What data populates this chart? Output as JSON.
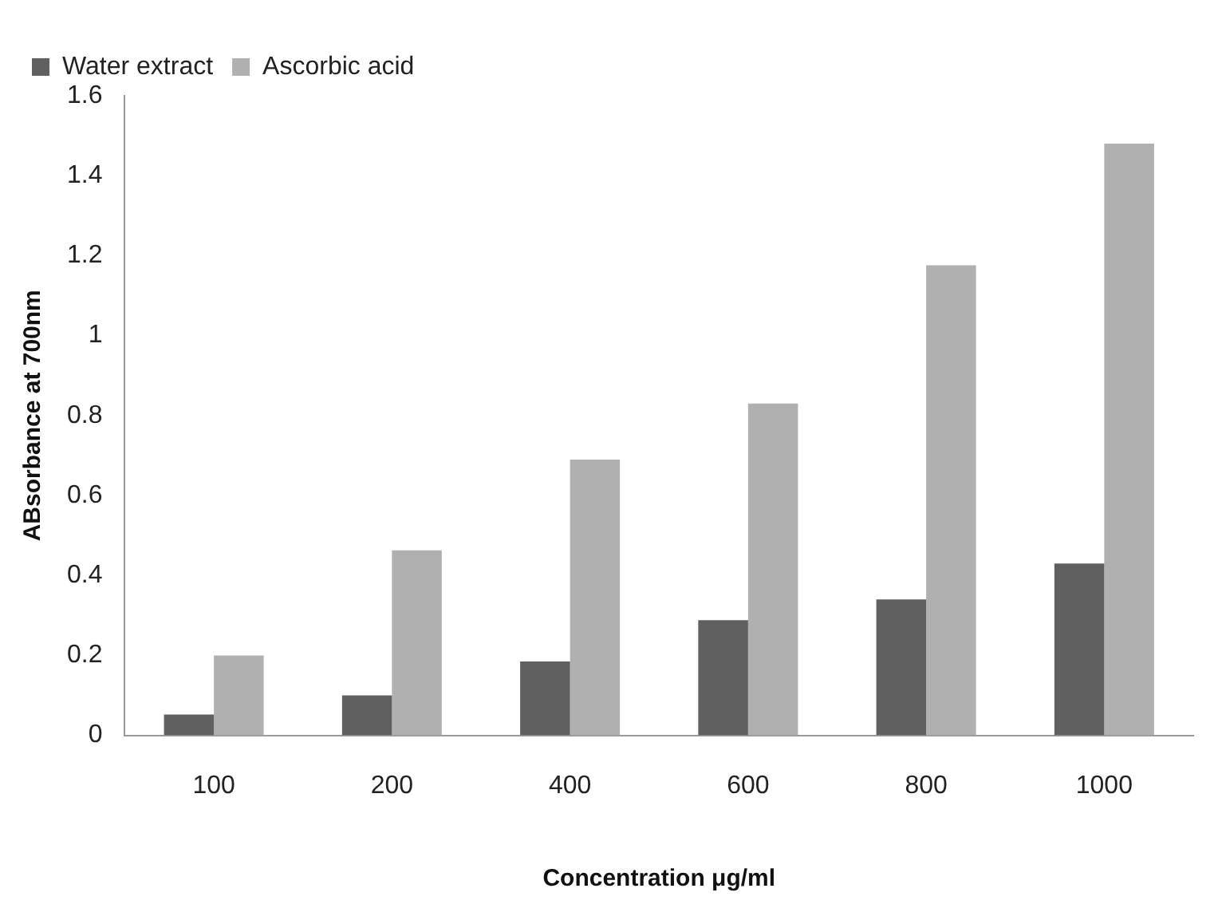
{
  "chart_data": {
    "type": "bar",
    "xlabel": "Concentration μg/ml",
    "ylabel": "ABsorbance at 700nm",
    "categories": [
      "100",
      "200",
      "400",
      "600",
      "800",
      "1000"
    ],
    "series": [
      {
        "name": "Water extract",
        "color": "#606060",
        "values": [
          0.052,
          0.1,
          0.185,
          0.288,
          0.34,
          0.43
        ]
      },
      {
        "name": "Ascorbic acid",
        "color": "#b0b0b0",
        "values": [
          0.2,
          0.463,
          0.69,
          0.83,
          1.176,
          1.48
        ]
      }
    ],
    "ylim": [
      0,
      1.6
    ],
    "yticks": [
      0,
      0.2,
      0.4,
      0.6,
      0.8,
      1,
      1.2,
      1.4,
      1.6
    ],
    "grid": false,
    "legend": "top left"
  }
}
